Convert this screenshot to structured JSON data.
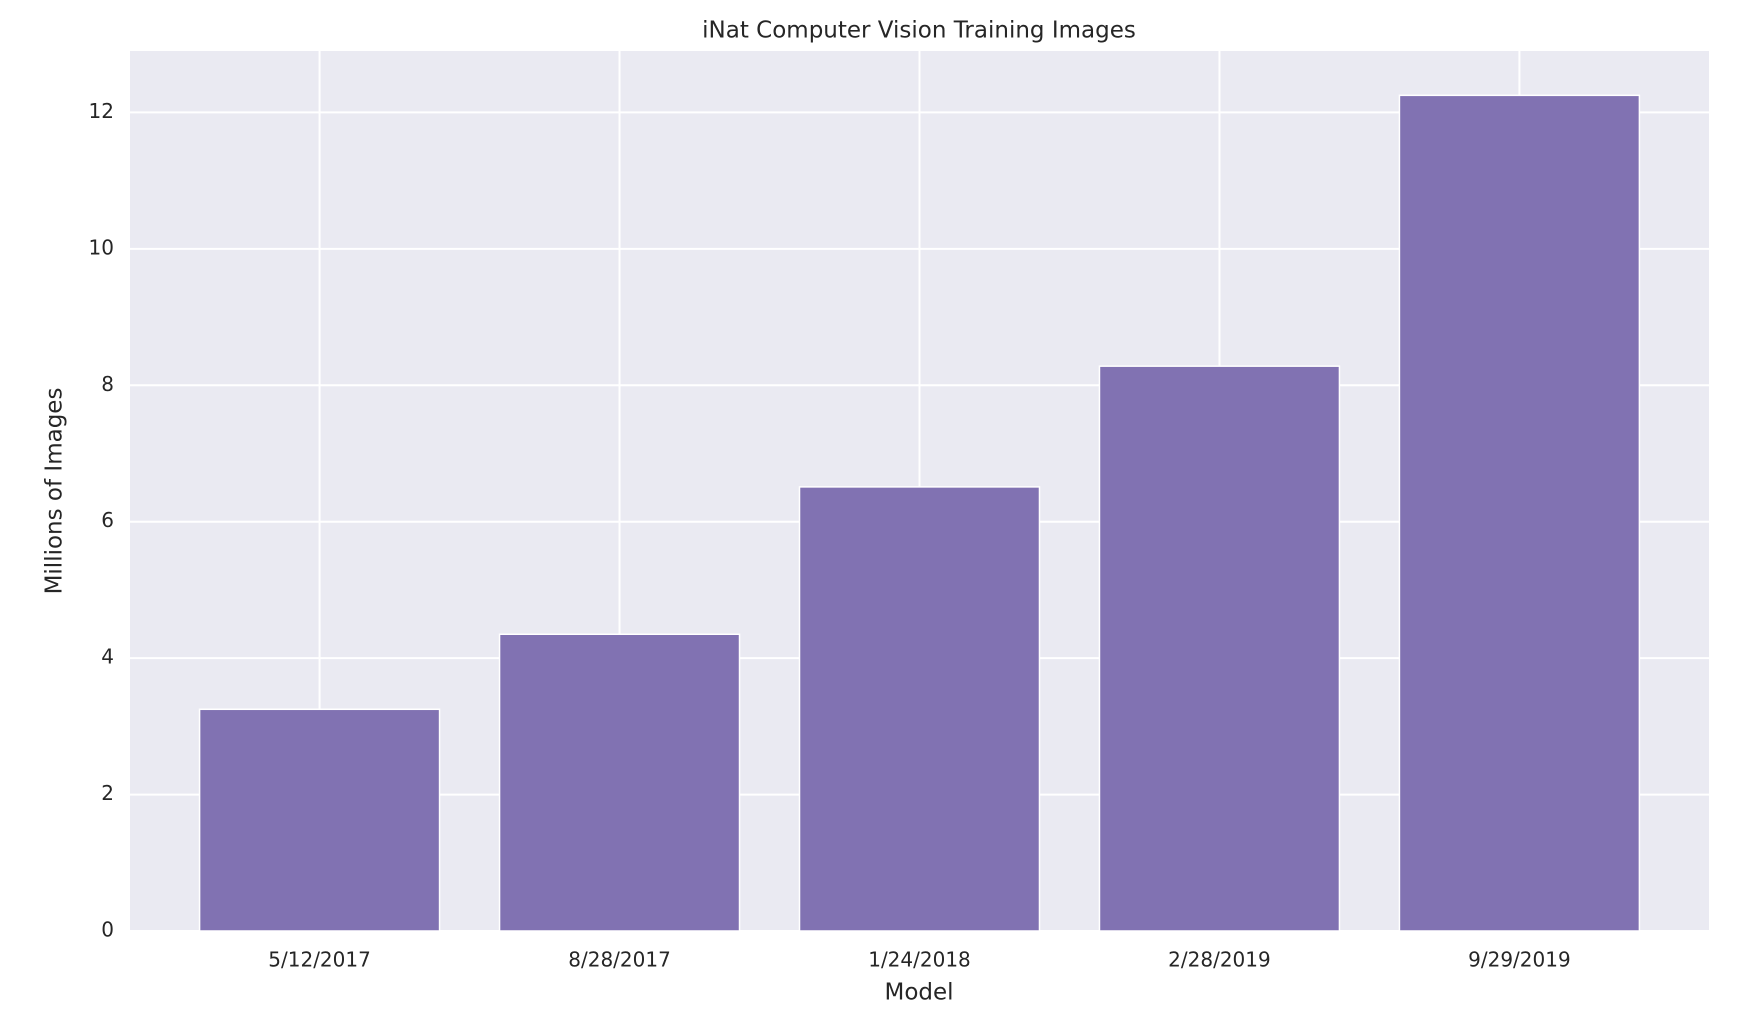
{
  "chart_data": {
    "type": "bar",
    "title": "iNat Computer Vision Training Images",
    "x_label": "Model",
    "y_label": "Millions of Images",
    "categories": [
      "5/12/2017",
      "8/28/2017",
      "1/24/2018",
      "2/28/2019",
      "9/29/2019"
    ],
    "values": [
      3.25,
      4.35,
      6.51,
      8.28,
      12.25
    ],
    "color": "#8172b2",
    "ylim": [
      0,
      12.9
    ],
    "yticks": [
      0,
      2,
      4,
      6,
      8,
      10,
      12
    ],
    "grid": true
  }
}
